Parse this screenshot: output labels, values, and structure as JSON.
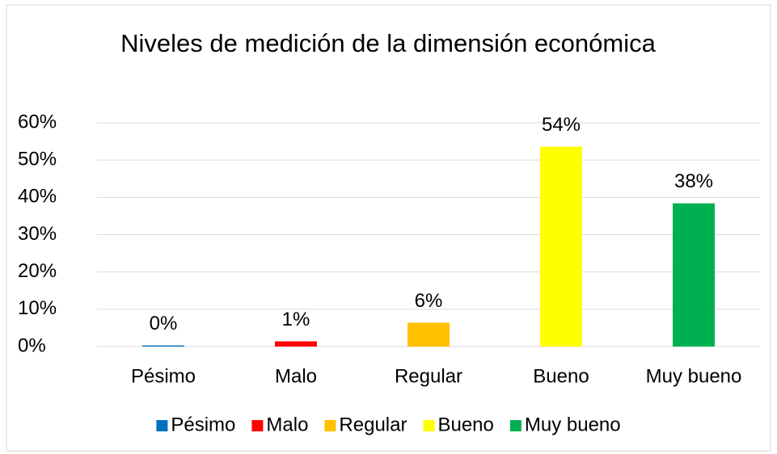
{
  "chart_data": {
    "type": "bar",
    "title": "Niveles de medición de la dimensión económica",
    "categories": [
      "Pésimo",
      "Malo",
      "Regular",
      "Bueno",
      "Muy bueno"
    ],
    "values": [
      0.3,
      1.4,
      6.4,
      53.6,
      38.4
    ],
    "value_labels": [
      "0%",
      "1%",
      "6%",
      "54%",
      "38%"
    ],
    "colors": [
      "#0070c0",
      "#ff0000",
      "#ffc000",
      "#ffff00",
      "#00b050"
    ],
    "ylim": [
      0,
      60
    ],
    "yticks": [
      {
        "value": 0,
        "label": "0%"
      },
      {
        "value": 10,
        "label": "10%"
      },
      {
        "value": 20,
        "label": "20%"
      },
      {
        "value": 30,
        "label": "30%"
      },
      {
        "value": 40,
        "label": "40%"
      },
      {
        "value": 50,
        "label": "50%"
      },
      {
        "value": 60,
        "label": "60%"
      }
    ],
    "grid": true,
    "legend": "bottom"
  }
}
